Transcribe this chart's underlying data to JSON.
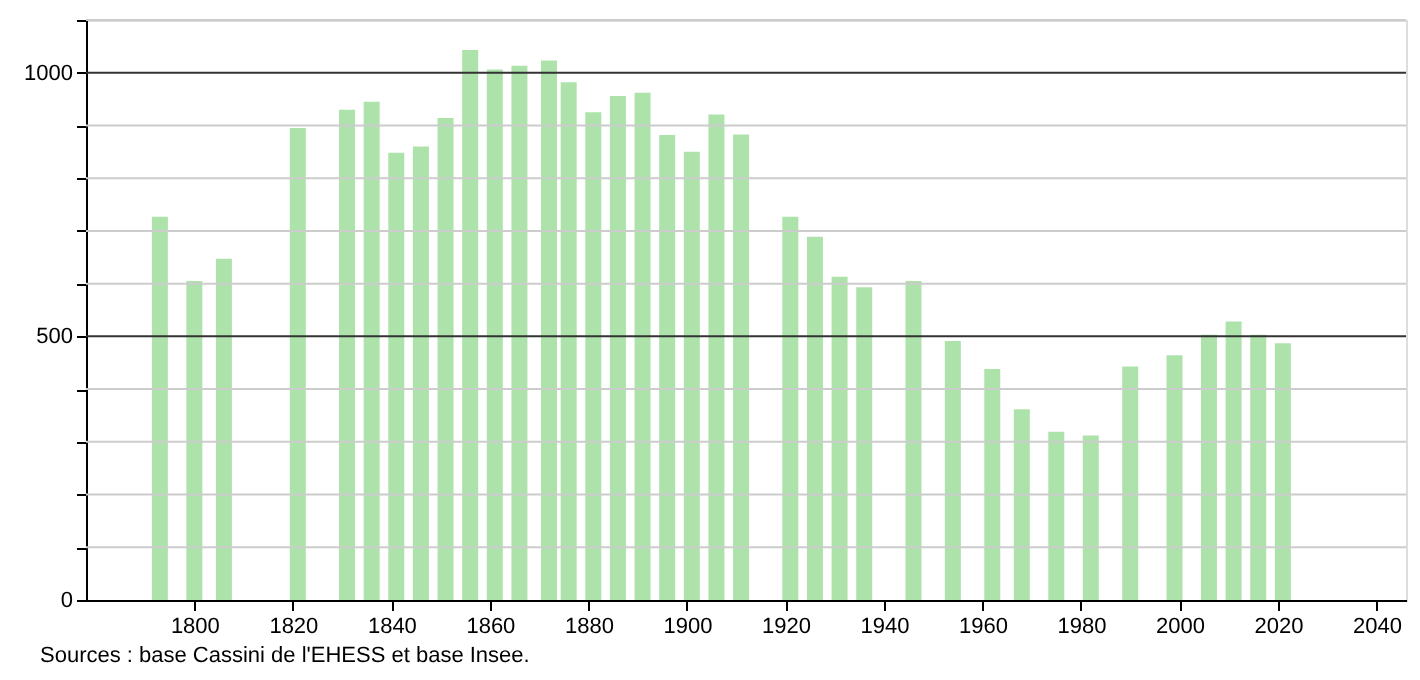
{
  "chart_data": {
    "type": "bar",
    "x": [
      1793,
      1800,
      1806,
      1821,
      1831,
      1836,
      1841,
      1846,
      1851,
      1856,
      1861,
      1866,
      1872,
      1876,
      1881,
      1886,
      1891,
      1896,
      1901,
      1906,
      1911,
      1921,
      1926,
      1931,
      1936,
      1946,
      1954,
      1962,
      1968,
      1975,
      1982,
      1990,
      1999,
      2006,
      2011,
      2016,
      2021
    ],
    "values": [
      727,
      605,
      647,
      895,
      930,
      945,
      848,
      860,
      914,
      1043,
      1006,
      1013,
      1023,
      982,
      925,
      956,
      962,
      882,
      850,
      921,
      883,
      727,
      689,
      613,
      593,
      605,
      491,
      438,
      362,
      319,
      312,
      443,
      464,
      503,
      528,
      503,
      487
    ],
    "color": "#ade3ab",
    "xlim": [
      1778,
      2046
    ],
    "xticks": [
      1800,
      1820,
      1840,
      1860,
      1880,
      1900,
      1920,
      1940,
      1960,
      1980,
      2000,
      2020,
      2040
    ],
    "ylim": [
      0,
      1100
    ],
    "yticks": [
      0,
      {
        "value": 100,
        "label": null
      },
      {
        "value": 200,
        "label": null
      },
      {
        "value": 300,
        "label": null
      },
      {
        "value": 400,
        "label": null
      },
      500,
      {
        "value": 600,
        "label": null
      },
      {
        "value": 700,
        "label": null
      },
      {
        "value": 800,
        "label": null
      },
      {
        "value": 900,
        "label": null
      },
      1000,
      {
        "value": 1100,
        "label": null
      }
    ],
    "grid": "y",
    "annotations": [
      "Sources : base Cassini de l'EHESS et base Insee."
    ]
  }
}
